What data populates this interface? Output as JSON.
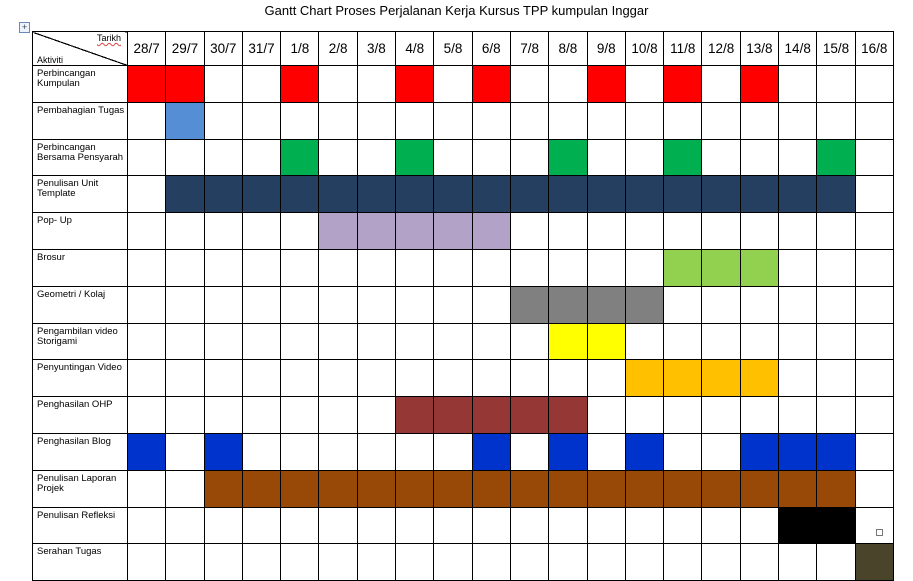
{
  "title": "Gantt Chart Proses Perjalanan Kerja Kursus TPP kumpulan Inggar",
  "corner": {
    "top_label": "Tarikh",
    "bottom_label": "Aktiviti"
  },
  "dates": [
    "28/7",
    "29/7",
    "30/7",
    "31/7",
    "1/8",
    "2/8",
    "3/8",
    "4/8",
    "5/8",
    "6/8",
    "7/8",
    "8/8",
    "9/8",
    "10/8",
    "11/8",
    "12/8",
    "13/8",
    "14/8",
    "15/8",
    "16/8"
  ],
  "activities": [
    {
      "name": "Perbincangan Kumpulan",
      "color": "#ff0000",
      "days": [
        0,
        1,
        4,
        7,
        9,
        12,
        14,
        16
      ]
    },
    {
      "name": "Pembahagian Tugas",
      "color": "#558ed5",
      "days": [
        1
      ]
    },
    {
      "name": "Perbincangan Bersama Pensyarah",
      "color": "#00b050",
      "days": [
        4,
        7,
        11,
        14,
        18
      ]
    },
    {
      "name": "Penulisan Unit Template",
      "color": "#243f60",
      "days": [
        1,
        2,
        3,
        4,
        5,
        6,
        7,
        8,
        9,
        10,
        11,
        12,
        13,
        14,
        15,
        16,
        17,
        18
      ]
    },
    {
      "name": "Pop- Up",
      "color": "#b3a2c7",
      "days": [
        5,
        6,
        7,
        8,
        9
      ]
    },
    {
      "name": "Brosur",
      "color": "#92d050",
      "days": [
        14,
        15,
        16
      ]
    },
    {
      "name": "Geometri / Kolaj",
      "color": "#808080",
      "days": [
        10,
        11,
        12,
        13
      ]
    },
    {
      "name": "Pengambilan video Storigami",
      "color": "#ffff00",
      "days": [
        11,
        12
      ]
    },
    {
      "name": "Penyuntingan Video",
      "color": "#ffc000",
      "days": [
        13,
        14,
        15,
        16
      ]
    },
    {
      "name": "Penghasilan OHP",
      "color": "#953735",
      "days": [
        7,
        8,
        9,
        10,
        11
      ]
    },
    {
      "name": "Penghasilan Blog",
      "color": "#0033cc",
      "days": [
        0,
        2,
        9,
        11,
        13,
        16,
        17,
        18
      ]
    },
    {
      "name": "Penulisan Laporan Projek",
      "color": "#984807",
      "days": [
        2,
        3,
        4,
        5,
        6,
        7,
        8,
        9,
        10,
        11,
        12,
        13,
        14,
        15,
        16,
        17,
        18
      ]
    },
    {
      "name": "Penulisan Refleksi",
      "color": "#000000",
      "days": [
        17,
        18
      ]
    },
    {
      "name": "Serahan Tugas",
      "color": "#4a452a",
      "days": [
        19
      ]
    }
  ]
}
